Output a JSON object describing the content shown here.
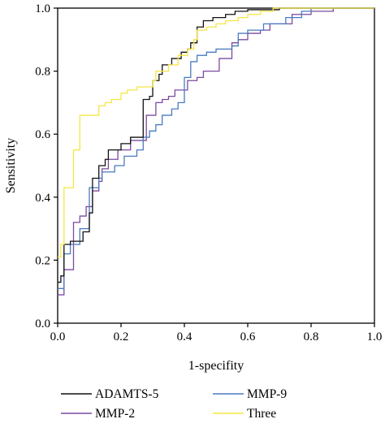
{
  "chart_data": {
    "type": "line",
    "xlabel": "1-specifity",
    "ylabel": "Sensitivity",
    "xlim": [
      0,
      1.0
    ],
    "ylim": [
      0,
      1.0
    ],
    "x_ticks": [
      "0.0",
      "0.2",
      "0.4",
      "0.6",
      "0.8",
      "1.0"
    ],
    "y_ticks": [
      "0.0",
      "0.2",
      "0.4",
      "0.6",
      "0.8",
      "1.0"
    ],
    "grid": false,
    "legend_position": "bottom",
    "series": [
      {
        "name": "ADAMTS-5",
        "color": "#111111",
        "points": [
          [
            0,
            0.13
          ],
          [
            0.01,
            0.13
          ],
          [
            0.01,
            0.15
          ],
          [
            0.02,
            0.15
          ],
          [
            0.02,
            0.25
          ],
          [
            0.04,
            0.25
          ],
          [
            0.04,
            0.26
          ],
          [
            0.08,
            0.26
          ],
          [
            0.08,
            0.29
          ],
          [
            0.1,
            0.29
          ],
          [
            0.1,
            0.35
          ],
          [
            0.11,
            0.35
          ],
          [
            0.11,
            0.46
          ],
          [
            0.13,
            0.46
          ],
          [
            0.13,
            0.5
          ],
          [
            0.15,
            0.5
          ],
          [
            0.15,
            0.52
          ],
          [
            0.16,
            0.52
          ],
          [
            0.16,
            0.55
          ],
          [
            0.2,
            0.55
          ],
          [
            0.2,
            0.57
          ],
          [
            0.23,
            0.57
          ],
          [
            0.23,
            0.59
          ],
          [
            0.27,
            0.59
          ],
          [
            0.27,
            0.71
          ],
          [
            0.29,
            0.71
          ],
          [
            0.29,
            0.72
          ],
          [
            0.3,
            0.72
          ],
          [
            0.3,
            0.77
          ],
          [
            0.32,
            0.77
          ],
          [
            0.32,
            0.79
          ],
          [
            0.33,
            0.79
          ],
          [
            0.33,
            0.82
          ],
          [
            0.36,
            0.82
          ],
          [
            0.36,
            0.84
          ],
          [
            0.39,
            0.84
          ],
          [
            0.39,
            0.86
          ],
          [
            0.41,
            0.86
          ],
          [
            0.41,
            0.87
          ],
          [
            0.42,
            0.87
          ],
          [
            0.42,
            0.89
          ],
          [
            0.44,
            0.89
          ],
          [
            0.44,
            0.94
          ],
          [
            0.46,
            0.94
          ],
          [
            0.46,
            0.96
          ],
          [
            0.49,
            0.96
          ],
          [
            0.49,
            0.97
          ],
          [
            0.53,
            0.97
          ],
          [
            0.53,
            0.98
          ],
          [
            0.56,
            0.98
          ],
          [
            0.56,
            0.99
          ],
          [
            0.6,
            0.99
          ],
          [
            0.6,
            0.995
          ],
          [
            0.7,
            0.995
          ],
          [
            0.7,
            1.0
          ],
          [
            1.0,
            1.0
          ]
        ]
      },
      {
        "name": "MMP-9",
        "color": "#4a7bbf",
        "points": [
          [
            0,
            0.11
          ],
          [
            0.02,
            0.11
          ],
          [
            0.02,
            0.22
          ],
          [
            0.04,
            0.22
          ],
          [
            0.04,
            0.25
          ],
          [
            0.07,
            0.25
          ],
          [
            0.07,
            0.3
          ],
          [
            0.1,
            0.3
          ],
          [
            0.1,
            0.43
          ],
          [
            0.13,
            0.43
          ],
          [
            0.13,
            0.46
          ],
          [
            0.14,
            0.46
          ],
          [
            0.14,
            0.48
          ],
          [
            0.18,
            0.48
          ],
          [
            0.18,
            0.5
          ],
          [
            0.21,
            0.5
          ],
          [
            0.21,
            0.53
          ],
          [
            0.25,
            0.53
          ],
          [
            0.25,
            0.55
          ],
          [
            0.27,
            0.55
          ],
          [
            0.27,
            0.59
          ],
          [
            0.29,
            0.59
          ],
          [
            0.29,
            0.61
          ],
          [
            0.31,
            0.61
          ],
          [
            0.31,
            0.63
          ],
          [
            0.33,
            0.63
          ],
          [
            0.33,
            0.66
          ],
          [
            0.36,
            0.66
          ],
          [
            0.36,
            0.68
          ],
          [
            0.38,
            0.68
          ],
          [
            0.38,
            0.7
          ],
          [
            0.4,
            0.7
          ],
          [
            0.4,
            0.78
          ],
          [
            0.42,
            0.78
          ],
          [
            0.42,
            0.83
          ],
          [
            0.44,
            0.83
          ],
          [
            0.44,
            0.85
          ],
          [
            0.47,
            0.85
          ],
          [
            0.47,
            0.86
          ],
          [
            0.5,
            0.86
          ],
          [
            0.5,
            0.87
          ],
          [
            0.55,
            0.87
          ],
          [
            0.55,
            0.88
          ],
          [
            0.57,
            0.88
          ],
          [
            0.57,
            0.92
          ],
          [
            0.6,
            0.92
          ],
          [
            0.6,
            0.93
          ],
          [
            0.65,
            0.93
          ],
          [
            0.65,
            0.95
          ],
          [
            0.72,
            0.95
          ],
          [
            0.72,
            0.97
          ],
          [
            0.77,
            0.97
          ],
          [
            0.77,
            0.99
          ],
          [
            0.8,
            0.99
          ],
          [
            0.8,
            1.0
          ],
          [
            1.0,
            1.0
          ]
        ]
      },
      {
        "name": "MMP-2",
        "color": "#7a4aa0",
        "points": [
          [
            0,
            0.09
          ],
          [
            0.02,
            0.09
          ],
          [
            0.02,
            0.17
          ],
          [
            0.05,
            0.17
          ],
          [
            0.05,
            0.32
          ],
          [
            0.07,
            0.32
          ],
          [
            0.07,
            0.34
          ],
          [
            0.09,
            0.34
          ],
          [
            0.09,
            0.37
          ],
          [
            0.11,
            0.37
          ],
          [
            0.11,
            0.42
          ],
          [
            0.13,
            0.42
          ],
          [
            0.13,
            0.45
          ],
          [
            0.14,
            0.45
          ],
          [
            0.14,
            0.49
          ],
          [
            0.16,
            0.49
          ],
          [
            0.16,
            0.52
          ],
          [
            0.19,
            0.52
          ],
          [
            0.19,
            0.55
          ],
          [
            0.23,
            0.55
          ],
          [
            0.23,
            0.58
          ],
          [
            0.28,
            0.58
          ],
          [
            0.28,
            0.66
          ],
          [
            0.31,
            0.66
          ],
          [
            0.31,
            0.7
          ],
          [
            0.33,
            0.7
          ],
          [
            0.33,
            0.71
          ],
          [
            0.35,
            0.71
          ],
          [
            0.35,
            0.72
          ],
          [
            0.37,
            0.72
          ],
          [
            0.37,
            0.74
          ],
          [
            0.41,
            0.74
          ],
          [
            0.41,
            0.77
          ],
          [
            0.44,
            0.77
          ],
          [
            0.44,
            0.78
          ],
          [
            0.46,
            0.78
          ],
          [
            0.46,
            0.8
          ],
          [
            0.51,
            0.8
          ],
          [
            0.51,
            0.84
          ],
          [
            0.55,
            0.84
          ],
          [
            0.55,
            0.89
          ],
          [
            0.57,
            0.89
          ],
          [
            0.57,
            0.9
          ],
          [
            0.6,
            0.9
          ],
          [
            0.6,
            0.92
          ],
          [
            0.64,
            0.92
          ],
          [
            0.64,
            0.93
          ],
          [
            0.67,
            0.93
          ],
          [
            0.67,
            0.95
          ],
          [
            0.74,
            0.95
          ],
          [
            0.74,
            0.98
          ],
          [
            0.8,
            0.98
          ],
          [
            0.8,
            0.99
          ],
          [
            0.87,
            0.99
          ],
          [
            0.87,
            1.0
          ],
          [
            1.0,
            1.0
          ]
        ]
      },
      {
        "name": "Three",
        "color": "#f5e642",
        "points": [
          [
            0,
            0.21
          ],
          [
            0.01,
            0.21
          ],
          [
            0.01,
            0.25
          ],
          [
            0.02,
            0.25
          ],
          [
            0.02,
            0.43
          ],
          [
            0.05,
            0.43
          ],
          [
            0.05,
            0.55
          ],
          [
            0.07,
            0.55
          ],
          [
            0.07,
            0.66
          ],
          [
            0.13,
            0.66
          ],
          [
            0.13,
            0.69
          ],
          [
            0.15,
            0.69
          ],
          [
            0.15,
            0.7
          ],
          [
            0.17,
            0.7
          ],
          [
            0.17,
            0.71
          ],
          [
            0.2,
            0.71
          ],
          [
            0.2,
            0.73
          ],
          [
            0.22,
            0.73
          ],
          [
            0.22,
            0.74
          ],
          [
            0.25,
            0.74
          ],
          [
            0.25,
            0.75
          ],
          [
            0.3,
            0.75
          ],
          [
            0.3,
            0.77
          ],
          [
            0.31,
            0.77
          ],
          [
            0.31,
            0.8
          ],
          [
            0.35,
            0.8
          ],
          [
            0.35,
            0.82
          ],
          [
            0.38,
            0.82
          ],
          [
            0.38,
            0.85
          ],
          [
            0.41,
            0.85
          ],
          [
            0.41,
            0.87
          ],
          [
            0.43,
            0.87
          ],
          [
            0.43,
            0.9
          ],
          [
            0.44,
            0.9
          ],
          [
            0.44,
            0.93
          ],
          [
            0.47,
            0.93
          ],
          [
            0.47,
            0.94
          ],
          [
            0.5,
            0.94
          ],
          [
            0.5,
            0.95
          ],
          [
            0.53,
            0.95
          ],
          [
            0.53,
            0.96
          ],
          [
            0.57,
            0.96
          ],
          [
            0.57,
            0.97
          ],
          [
            0.6,
            0.97
          ],
          [
            0.6,
            0.98
          ],
          [
            0.64,
            0.98
          ],
          [
            0.64,
            0.99
          ],
          [
            0.68,
            0.99
          ],
          [
            0.68,
            1.0
          ],
          [
            1.0,
            1.0
          ]
        ]
      }
    ]
  },
  "legend": {
    "items": [
      {
        "name": "ADAMTS-5",
        "color": "#111111"
      },
      {
        "name": "MMP-9",
        "color": "#4a7bbf"
      },
      {
        "name": "MMP-2",
        "color": "#7a4aa0"
      },
      {
        "name": "Three",
        "color": "#f5e642"
      }
    ]
  }
}
